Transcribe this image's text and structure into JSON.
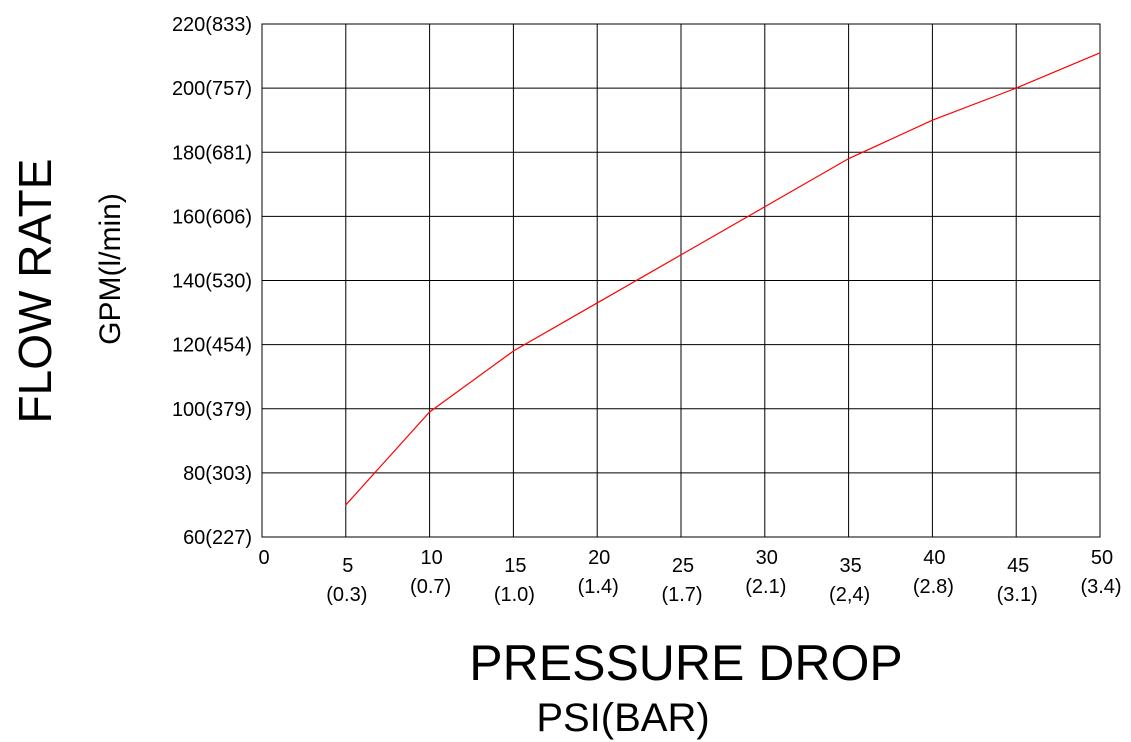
{
  "chart_data": {
    "type": "line",
    "xlabel": "PRESSURE DROP",
    "xlabel_unit": "PSI(BAR)",
    "ylabel": "FLOW RATE",
    "ylabel_unit": "GPM(l/min)",
    "xlim": [
      0,
      50
    ],
    "ylim": [
      60,
      220
    ],
    "grid": true,
    "x_ticks": [
      {
        "value": 0,
        "label": "0",
        "sub": ""
      },
      {
        "value": 5,
        "label": "5",
        "sub": "(0.3)"
      },
      {
        "value": 10,
        "label": "10",
        "sub": "(0.7)"
      },
      {
        "value": 15,
        "label": "15",
        "sub": "(1.0)"
      },
      {
        "value": 20,
        "label": "20",
        "sub": "(1.4)"
      },
      {
        "value": 25,
        "label": "25",
        "sub": "(1.7)"
      },
      {
        "value": 30,
        "label": "30",
        "sub": "(2.1)"
      },
      {
        "value": 35,
        "label": "35",
        "sub": "(2,4)"
      },
      {
        "value": 40,
        "label": "40",
        "sub": "(2.8)"
      },
      {
        "value": 45,
        "label": "45",
        "sub": "(3.1)"
      },
      {
        "value": 50,
        "label": "50",
        "sub": "(3.4)"
      }
    ],
    "y_ticks": [
      {
        "value": 60,
        "label": "60(227)"
      },
      {
        "value": 80,
        "label": "80(303)"
      },
      {
        "value": 100,
        "label": "100(379)"
      },
      {
        "value": 120,
        "label": "120(454)"
      },
      {
        "value": 140,
        "label": "140(530)"
      },
      {
        "value": 160,
        "label": "160(606)"
      },
      {
        "value": 180,
        "label": "180(681)"
      },
      {
        "value": 200,
        "label": "200(757)"
      },
      {
        "value": 220,
        "label": "220(833)"
      }
    ],
    "series": [
      {
        "color": "#ff0000",
        "points": [
          {
            "x": 5,
            "y": 70
          },
          {
            "x": 10,
            "y": 99
          },
          {
            "x": 15,
            "y": 118
          },
          {
            "x": 20,
            "y": 133
          },
          {
            "x": 25,
            "y": 148
          },
          {
            "x": 30,
            "y": 163
          },
          {
            "x": 35,
            "y": 178
          },
          {
            "x": 40,
            "y": 190
          },
          {
            "x": 45,
            "y": 200
          },
          {
            "x": 50,
            "y": 211
          }
        ]
      }
    ]
  }
}
